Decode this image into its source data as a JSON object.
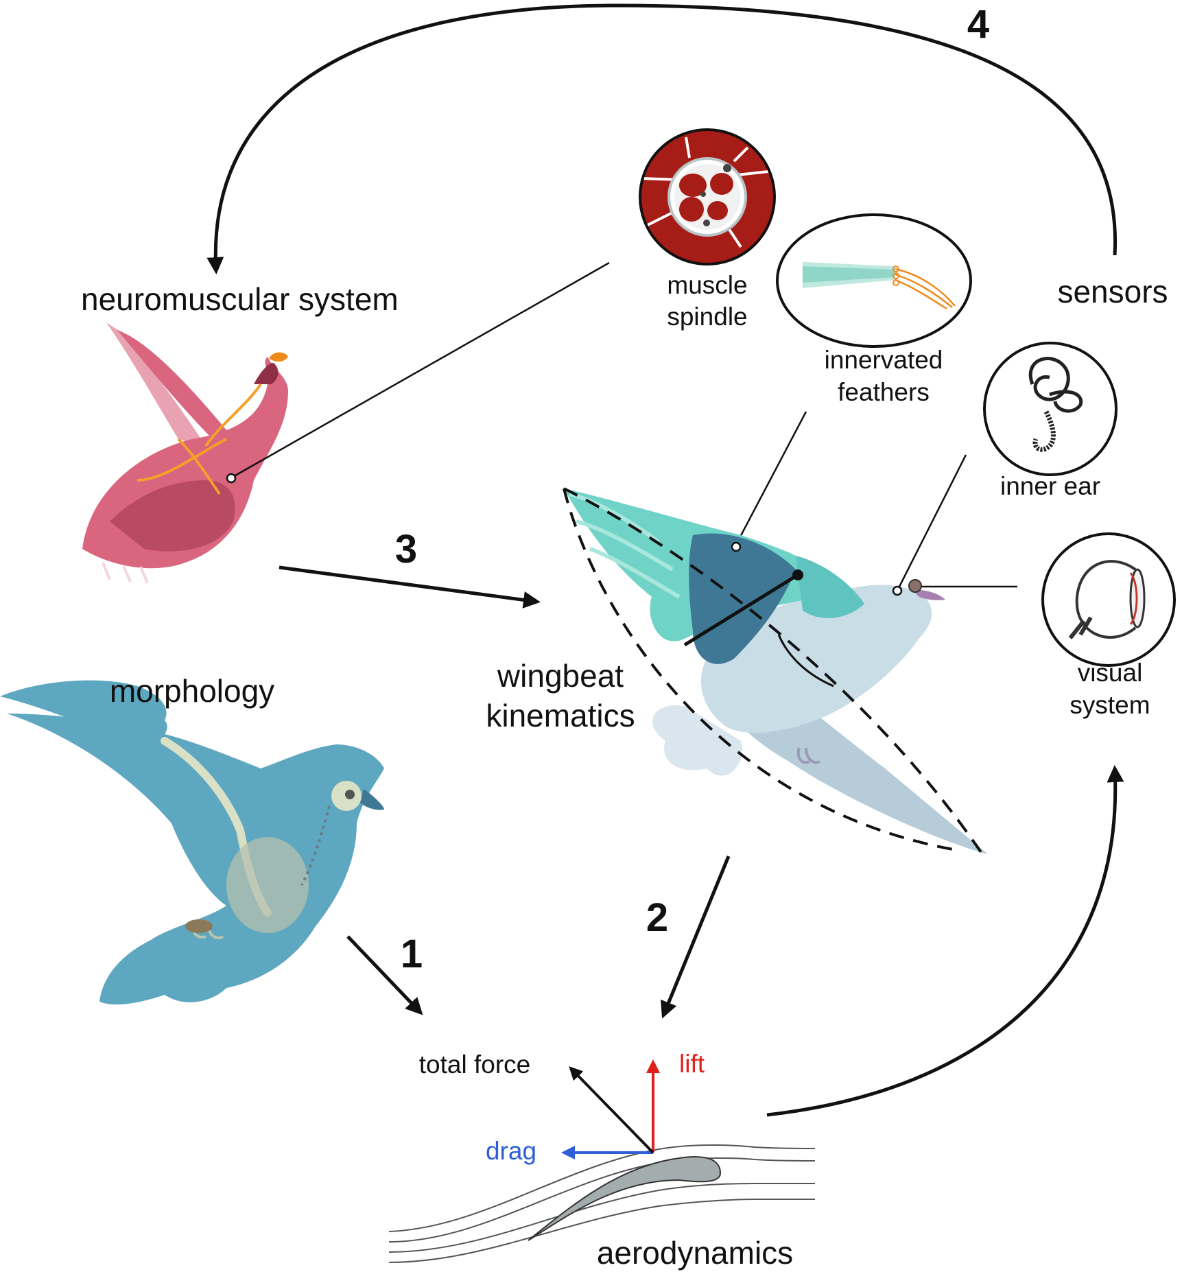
{
  "labels": {
    "neuromuscular": "neuromuscular system",
    "muscle_spindle_1": "muscle",
    "muscle_spindle_2": "spindle",
    "sensors": "sensors",
    "innervated_1": "innervated",
    "innervated_2": "feathers",
    "inner_ear": "inner ear",
    "visual_1": "visual",
    "visual_2": "system",
    "wingbeat_1": "wingbeat",
    "wingbeat_2": "kinematics",
    "morphology": "morphology",
    "total_force": "total force",
    "lift": "lift",
    "drag": "drag",
    "aerodynamics": "aerodynamics"
  },
  "steps": [
    "1",
    "2",
    "3",
    "4"
  ],
  "colors": {
    "lift": "#e0201b",
    "drag": "#2e5fd6",
    "arrow": "#111111",
    "muscle": "#a61c17",
    "morph_bird": "#5ea7c0",
    "kinematic_wing": "#6fd3c7",
    "neuro_bird": "#d9657e"
  }
}
